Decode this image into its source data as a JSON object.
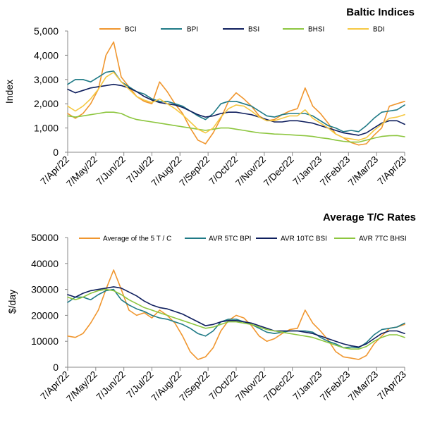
{
  "chart_data": [
    {
      "type": "line",
      "title": "Baltic Indices",
      "xlabel": "",
      "ylabel": "Index",
      "ylim": [
        0,
        5000
      ],
      "yticks": [
        "0",
        "1,000",
        "2,000",
        "3,000",
        "4,000",
        "5,000"
      ],
      "grid": false,
      "legend": "top",
      "x_ticks": [
        "7/Apr/22",
        "7/May/22",
        "7/Jun/22",
        "7/Jul/22",
        "7/Aug/22",
        "7/Sep/22",
        "7/Oct/22",
        "7/Nov/22",
        "7/Dec/22",
        "7/Jan/23",
        "7/Feb/23",
        "7/Mar/23",
        "7/Apr/23"
      ],
      "series": [
        {
          "name": "BCI",
          "color": "#F0962E",
          "values": [
            1600,
            1400,
            1600,
            2000,
            2600,
            4000,
            4550,
            3100,
            2700,
            2300,
            2100,
            2000,
            2900,
            2500,
            2000,
            1600,
            1000,
            500,
            350,
            800,
            1400,
            2100,
            2450,
            2200,
            1900,
            1500,
            1300,
            1350,
            1550,
            1700,
            1800,
            2650,
            1900,
            1600,
            1200,
            750,
            600,
            400,
            300,
            350,
            700,
            1000,
            1900,
            2000,
            2100
          ]
        },
        {
          "name": "BPI",
          "color": "#1F7A86",
          "values": [
            2800,
            3000,
            3000,
            2900,
            3100,
            3300,
            3350,
            2900,
            2700,
            2500,
            2400,
            2200,
            2100,
            2100,
            2000,
            1900,
            1700,
            1500,
            1350,
            1600,
            2000,
            2100,
            2100,
            2000,
            1900,
            1700,
            1500,
            1450,
            1550,
            1600,
            1600,
            1600,
            1500,
            1300,
            1100,
            1000,
            850,
            900,
            850,
            1100,
            1400,
            1650,
            1700,
            1750,
            1950
          ]
        },
        {
          "name": "BSI",
          "color": "#0F1F5E",
          "values": [
            2600,
            2450,
            2550,
            2650,
            2700,
            2750,
            2800,
            2750,
            2650,
            2500,
            2300,
            2150,
            2050,
            2000,
            1950,
            1850,
            1700,
            1550,
            1450,
            1500,
            1600,
            1650,
            1650,
            1600,
            1550,
            1450,
            1350,
            1250,
            1250,
            1300,
            1300,
            1250,
            1200,
            1100,
            1000,
            900,
            800,
            750,
            700,
            800,
            1000,
            1200,
            1300,
            1300,
            1150
          ]
        },
        {
          "name": "BHSI",
          "color": "#8DC63F",
          "values": [
            1500,
            1450,
            1500,
            1550,
            1600,
            1650,
            1650,
            1600,
            1450,
            1350,
            1300,
            1250,
            1200,
            1150,
            1100,
            1050,
            1000,
            950,
            900,
            950,
            1000,
            1000,
            950,
            900,
            850,
            800,
            780,
            750,
            740,
            720,
            700,
            680,
            650,
            600,
            560,
            500,
            450,
            420,
            420,
            500,
            580,
            650,
            680,
            690,
            640
          ]
        },
        {
          "name": "BDI",
          "color": "#F5C842",
          "values": [
            1900,
            1700,
            1900,
            2200,
            2600,
            3100,
            3300,
            2900,
            2600,
            2300,
            2150,
            2050,
            2200,
            2000,
            1800,
            1550,
            1250,
            950,
            800,
            1000,
            1450,
            1800,
            1950,
            1900,
            1700,
            1450,
            1300,
            1300,
            1400,
            1500,
            1500,
            1750,
            1400,
            1200,
            1000,
            750,
            600,
            550,
            500,
            600,
            900,
            1150,
            1400,
            1450,
            1550
          ]
        }
      ]
    },
    {
      "type": "line",
      "title": "Average T/C Rates",
      "xlabel": "",
      "ylabel": "$/day",
      "ylim": [
        0,
        50000
      ],
      "yticks": [
        "0",
        "10000",
        "20000",
        "30000",
        "40000",
        "50000"
      ],
      "grid": false,
      "legend": "top",
      "x_ticks": [
        "7/Apr/22",
        "7/May/22",
        "7/Jun/22",
        "7/Jul/22",
        "7/Aug/22",
        "7/Sep/22",
        "7/Oct/22",
        "7/Nov/22",
        "7/Dec/22",
        "7/Jan/23",
        "7/Feb/23",
        "7/Mar/23",
        "7/Apr/23"
      ],
      "series": [
        {
          "name": "Average of the 5 T / C",
          "color": "#F0962E",
          "values": [
            12000,
            11500,
            13000,
            17000,
            22000,
            30000,
            37500,
            30000,
            22000,
            20000,
            21000,
            19000,
            22000,
            20000,
            17000,
            12000,
            6000,
            3000,
            4000,
            7500,
            14000,
            18000,
            20000,
            19000,
            16000,
            12000,
            10000,
            11000,
            13000,
            14500,
            15000,
            22000,
            17000,
            14000,
            10500,
            6000,
            4000,
            3500,
            3000,
            4500,
            9000,
            12000,
            15000,
            15500,
            16500
          ]
        },
        {
          "name": "AVR 5TC BPI",
          "color": "#1F7A86",
          "values": [
            25000,
            27000,
            27000,
            26000,
            28000,
            29500,
            30000,
            26000,
            24000,
            22500,
            21500,
            20000,
            19000,
            18500,
            17500,
            16500,
            15000,
            13000,
            12000,
            14000,
            17500,
            18500,
            18500,
            17500,
            16500,
            15000,
            13500,
            13000,
            13500,
            14000,
            14000,
            14000,
            13500,
            11500,
            10000,
            9000,
            7500,
            7800,
            7500,
            9500,
            12500,
            14500,
            15000,
            15500,
            17000
          ]
        },
        {
          "name": "AVR 10TC BSI",
          "color": "#0F1F5E",
          "values": [
            28000,
            27000,
            28500,
            29500,
            30000,
            30500,
            31000,
            30500,
            29000,
            27500,
            25500,
            24000,
            23000,
            22500,
            21500,
            20500,
            19000,
            17500,
            16000,
            16500,
            17500,
            18000,
            18000,
            17500,
            17000,
            16000,
            15000,
            14000,
            14000,
            14000,
            14000,
            13500,
            13000,
            12000,
            11000,
            10000,
            9000,
            8300,
            7800,
            9000,
            11000,
            13000,
            14000,
            14000,
            13000
          ]
        },
        {
          "name": "AVR 7TC BHSI",
          "color": "#8DC63F",
          "values": [
            27000,
            26000,
            27000,
            28500,
            29500,
            30000,
            29500,
            28000,
            26000,
            24500,
            23000,
            22000,
            21000,
            20000,
            19000,
            18000,
            17000,
            16000,
            15000,
            15500,
            16500,
            17500,
            17500,
            17000,
            16500,
            15500,
            14500,
            14000,
            13500,
            13000,
            12500,
            12000,
            11500,
            10500,
            9500,
            8500,
            7500,
            7000,
            7000,
            8000,
            10000,
            11500,
            12500,
            12500,
            11500
          ]
        }
      ]
    }
  ]
}
